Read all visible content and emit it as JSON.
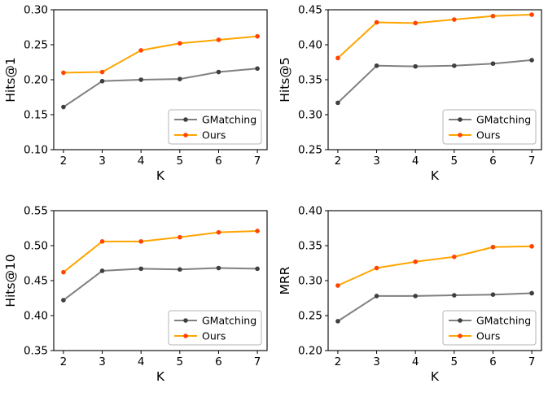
{
  "figure": {
    "background": "#ffffff"
  },
  "colors": {
    "axis": "#000000",
    "legend_border": "#b5b5b5",
    "gmatching_line": "#808080",
    "gmatching_marker": "#3f3f3f",
    "ours_line": "#ffa500",
    "ours_marker": "#ff4500"
  },
  "chart_data": [
    {
      "type": "line",
      "title": "",
      "ylabel": "Hits@1",
      "xlabel": "K",
      "x": [
        2,
        3,
        4,
        5,
        6,
        7
      ],
      "xtick_labels": [
        "2",
        "3",
        "4",
        "5",
        "6",
        "7"
      ],
      "ylim": [
        0.1,
        0.3
      ],
      "yticks": [
        0.1,
        0.15,
        0.2,
        0.25,
        0.3
      ],
      "ytick_labels": [
        "0.10",
        "0.15",
        "0.20",
        "0.25",
        "0.30"
      ],
      "grid": false,
      "legend_position": "lower right",
      "series": [
        {
          "name": "GMatching",
          "line_color": "#808080",
          "marker_color": "#3f3f3f",
          "values": [
            0.161,
            0.198,
            0.2,
            0.201,
            0.211,
            0.216
          ]
        },
        {
          "name": "Ours",
          "line_color": "#ffa500",
          "marker_color": "#ff4500",
          "values": [
            0.21,
            0.211,
            0.242,
            0.252,
            0.257,
            0.262
          ]
        }
      ]
    },
    {
      "type": "line",
      "title": "",
      "ylabel": "Hits@5",
      "xlabel": "K",
      "x": [
        2,
        3,
        4,
        5,
        6,
        7
      ],
      "xtick_labels": [
        "2",
        "3",
        "4",
        "5",
        "6",
        "7"
      ],
      "ylim": [
        0.25,
        0.45
      ],
      "yticks": [
        0.25,
        0.3,
        0.35,
        0.4,
        0.45
      ],
      "ytick_labels": [
        "0.25",
        "0.30",
        "0.35",
        "0.40",
        "0.45"
      ],
      "grid": false,
      "legend_position": "lower right",
      "series": [
        {
          "name": "GMatching",
          "line_color": "#808080",
          "marker_color": "#3f3f3f",
          "values": [
            0.317,
            0.37,
            0.369,
            0.37,
            0.373,
            0.378
          ]
        },
        {
          "name": "Ours",
          "line_color": "#ffa500",
          "marker_color": "#ff4500",
          "values": [
            0.381,
            0.432,
            0.431,
            0.436,
            0.441,
            0.443
          ]
        }
      ]
    },
    {
      "type": "line",
      "title": "",
      "ylabel": "Hits@10",
      "xlabel": "K",
      "x": [
        2,
        3,
        4,
        5,
        6,
        7
      ],
      "xtick_labels": [
        "2",
        "3",
        "4",
        "5",
        "6",
        "7"
      ],
      "ylim": [
        0.35,
        0.55
      ],
      "yticks": [
        0.35,
        0.4,
        0.45,
        0.5,
        0.55
      ],
      "ytick_labels": [
        "0.35",
        "0.40",
        "0.45",
        "0.50",
        "0.55"
      ],
      "grid": false,
      "legend_position": "lower right",
      "series": [
        {
          "name": "GMatching",
          "line_color": "#808080",
          "marker_color": "#3f3f3f",
          "values": [
            0.422,
            0.464,
            0.467,
            0.466,
            0.468,
            0.467
          ]
        },
        {
          "name": "Ours",
          "line_color": "#ffa500",
          "marker_color": "#ff4500",
          "values": [
            0.462,
            0.506,
            0.506,
            0.512,
            0.519,
            0.521
          ]
        }
      ]
    },
    {
      "type": "line",
      "title": "",
      "ylabel": "MRR",
      "xlabel": "K",
      "x": [
        2,
        3,
        4,
        5,
        6,
        7
      ],
      "xtick_labels": [
        "2",
        "3",
        "4",
        "5",
        "6",
        "7"
      ],
      "ylim": [
        0.2,
        0.4
      ],
      "yticks": [
        0.2,
        0.25,
        0.3,
        0.35,
        0.4
      ],
      "ytick_labels": [
        "0.20",
        "0.25",
        "0.30",
        "0.35",
        "0.40"
      ],
      "grid": false,
      "legend_position": "lower right",
      "series": [
        {
          "name": "GMatching",
          "line_color": "#808080",
          "marker_color": "#3f3f3f",
          "values": [
            0.242,
            0.278,
            0.278,
            0.279,
            0.28,
            0.282
          ]
        },
        {
          "name": "Ours",
          "line_color": "#ffa500",
          "marker_color": "#ff4500",
          "values": [
            0.293,
            0.318,
            0.327,
            0.334,
            0.348,
            0.349
          ]
        }
      ]
    }
  ]
}
